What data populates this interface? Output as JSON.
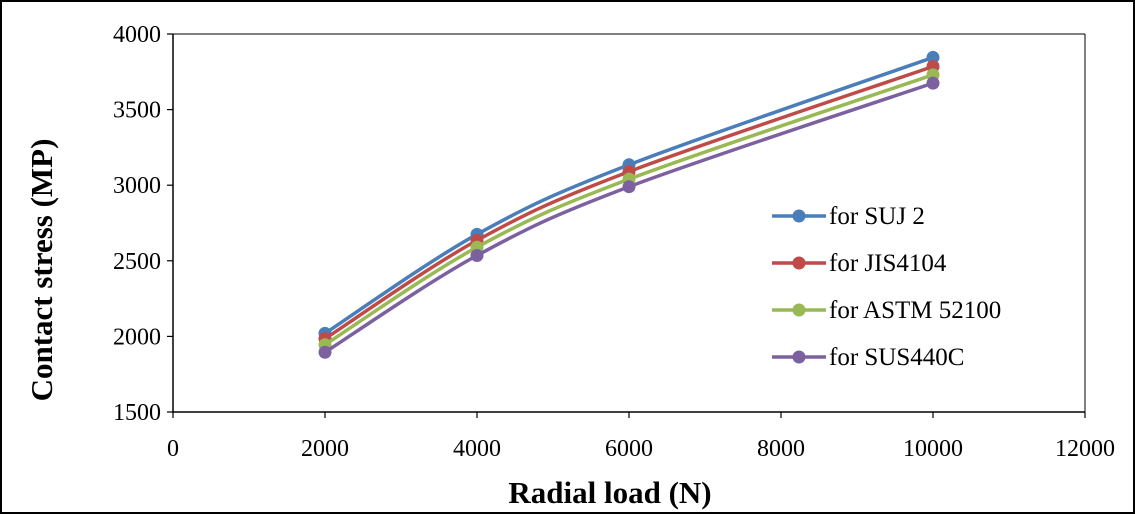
{
  "chart_data": {
    "type": "line",
    "title": "",
    "xlabel": "Radial load (N)",
    "ylabel": "Contact stress (MP)",
    "xlim": [
      0,
      12000
    ],
    "ylim": [
      1500,
      4000
    ],
    "xticks": [
      0,
      2000,
      4000,
      6000,
      8000,
      10000,
      12000
    ],
    "yticks": [
      1500,
      2000,
      2500,
      3000,
      3500,
      4000
    ],
    "grid": false,
    "legend_position": "right",
    "smooth": true,
    "x": [
      2000,
      4000,
      6000,
      10000
    ],
    "series": [
      {
        "name": "for SUJ 2",
        "color": "#4a7ebb",
        "values": [
          2020,
          2675,
          3135,
          3845
        ]
      },
      {
        "name": "for JIS4104",
        "color": "#be4b48",
        "values": [
          1985,
          2635,
          3090,
          3785
        ]
      },
      {
        "name": "for ASTM 52100",
        "color": "#98b954",
        "values": [
          1945,
          2590,
          3040,
          3730
        ]
      },
      {
        "name": "for SUS440C",
        "color": "#7d60a0",
        "values": [
          1895,
          2535,
          2990,
          3675
        ]
      }
    ]
  }
}
